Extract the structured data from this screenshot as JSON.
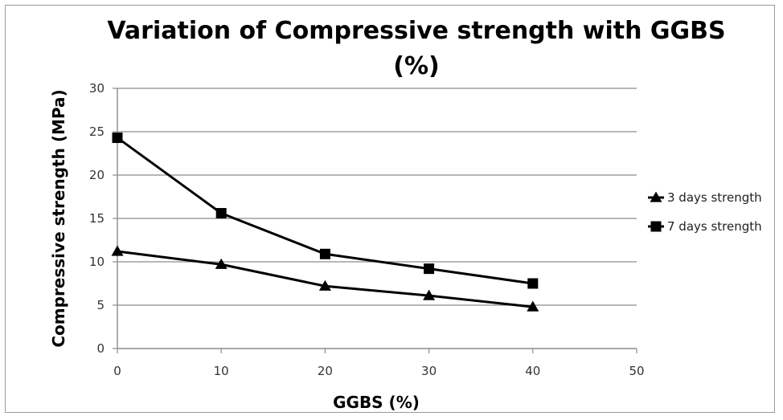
{
  "chart_data": {
    "type": "line",
    "title_line1": "Variation of Compressive strength with GGBS",
    "title_line2": "(%)",
    "xlabel": "GGBS (%)",
    "ylabel": "Compressive strength (MPa)",
    "xlim": [
      0,
      50
    ],
    "ylim": [
      0,
      30
    ],
    "x_ticks": [
      0,
      10,
      20,
      30,
      40,
      50
    ],
    "y_ticks": [
      0,
      5,
      10,
      15,
      20,
      25,
      30
    ],
    "grid": true,
    "legend_position": "right",
    "x": [
      0,
      10,
      20,
      30,
      40
    ],
    "series": [
      {
        "name": "3 days strength",
        "marker": "triangle",
        "values": [
          11.2,
          9.7,
          7.2,
          6.1,
          4.8
        ]
      },
      {
        "name": "7 days strength",
        "marker": "square",
        "values": [
          24.3,
          15.6,
          10.9,
          9.2,
          7.5
        ]
      }
    ],
    "colors": {
      "line": "#000000",
      "grid": "#8c8c8c",
      "axis": "#8c8c8c"
    }
  }
}
